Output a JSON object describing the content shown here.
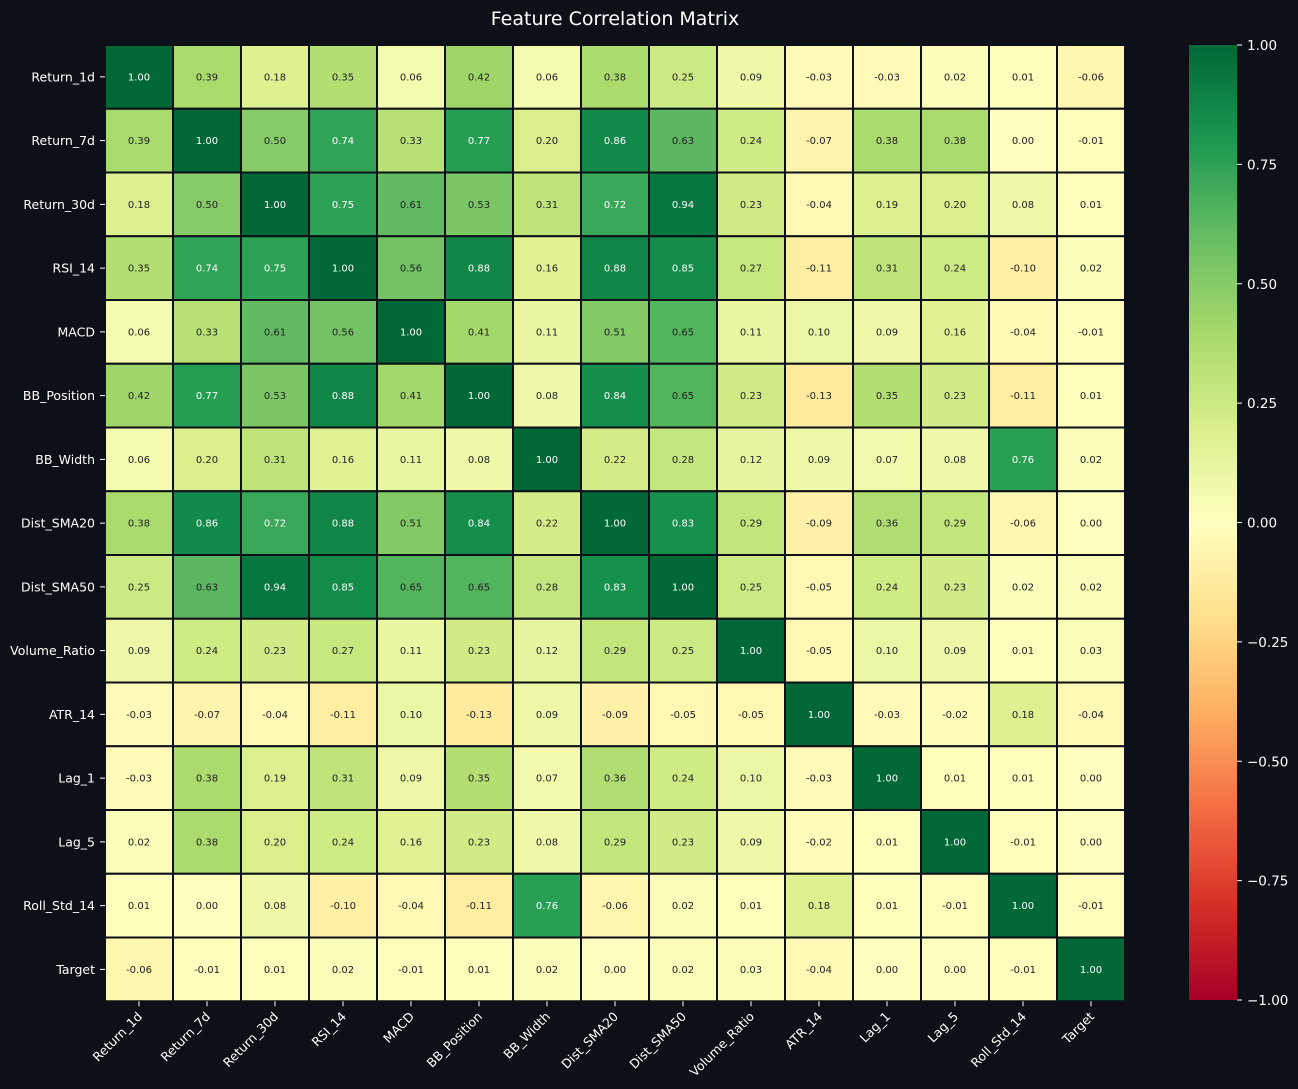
{
  "colors": {
    "background": "#0d1017",
    "text": "#ffffff",
    "cell_border": "#0d1017",
    "colormap": "RdYlGn"
  },
  "chart_data": {
    "type": "heatmap",
    "title": "Feature Correlation Matrix",
    "rows": [
      "Return_1d",
      "Return_7d",
      "Return_30d",
      "RSI_14",
      "MACD",
      "BB_Position",
      "BB_Width",
      "Dist_SMA20",
      "Dist_SMA50",
      "Volume_Ratio",
      "ATR_14",
      "Lag_1",
      "Lag_5",
      "Roll_Std_14",
      "Target"
    ],
    "columns": [
      "Return_1d",
      "Return_7d",
      "Return_30d",
      "RSI_14",
      "MACD",
      "BB_Position",
      "BB_Width",
      "Dist_SMA20",
      "Dist_SMA50",
      "Volume_Ratio",
      "ATR_14",
      "Lag_1",
      "Lag_5",
      "Roll_Std_14",
      "Target"
    ],
    "values": [
      [
        1.0,
        0.39,
        0.18,
        0.35,
        0.06,
        0.42,
        0.06,
        0.38,
        0.25,
        0.09,
        -0.03,
        -0.03,
        0.02,
        0.01,
        -0.06
      ],
      [
        0.39,
        1.0,
        0.5,
        0.74,
        0.33,
        0.77,
        0.2,
        0.86,
        0.63,
        0.24,
        -0.07,
        0.38,
        0.38,
        -0.0,
        -0.01
      ],
      [
        0.18,
        0.5,
        1.0,
        0.75,
        0.61,
        0.53,
        0.31,
        0.72,
        0.94,
        0.23,
        -0.04,
        0.19,
        0.2,
        0.08,
        0.01
      ],
      [
        0.35,
        0.74,
        0.75,
        1.0,
        0.56,
        0.88,
        0.16,
        0.88,
        0.85,
        0.27,
        -0.11,
        0.31,
        0.24,
        -0.1,
        0.02
      ],
      [
        0.06,
        0.33,
        0.61,
        0.56,
        1.0,
        0.41,
        0.11,
        0.51,
        0.65,
        0.11,
        0.1,
        0.09,
        0.16,
        -0.04,
        -0.01
      ],
      [
        0.42,
        0.77,
        0.53,
        0.88,
        0.41,
        1.0,
        0.08,
        0.84,
        0.65,
        0.23,
        -0.13,
        0.35,
        0.23,
        -0.11,
        0.01
      ],
      [
        0.06,
        0.2,
        0.31,
        0.16,
        0.11,
        0.08,
        1.0,
        0.22,
        0.28,
        0.12,
        0.09,
        0.07,
        0.08,
        0.76,
        0.02
      ],
      [
        0.38,
        0.86,
        0.72,
        0.88,
        0.51,
        0.84,
        0.22,
        1.0,
        0.83,
        0.29,
        -0.09,
        0.36,
        0.29,
        -0.06,
        0.0
      ],
      [
        0.25,
        0.63,
        0.94,
        0.85,
        0.65,
        0.65,
        0.28,
        0.83,
        1.0,
        0.25,
        -0.05,
        0.24,
        0.23,
        0.02,
        0.02
      ],
      [
        0.09,
        0.24,
        0.23,
        0.27,
        0.11,
        0.23,
        0.12,
        0.29,
        0.25,
        1.0,
        -0.05,
        0.1,
        0.09,
        0.01,
        0.03
      ],
      [
        -0.03,
        -0.07,
        -0.04,
        -0.11,
        0.1,
        -0.13,
        0.09,
        -0.09,
        -0.05,
        -0.05,
        1.0,
        -0.03,
        -0.02,
        0.18,
        -0.04
      ],
      [
        -0.03,
        0.38,
        0.19,
        0.31,
        0.09,
        0.35,
        0.07,
        0.36,
        0.24,
        0.1,
        -0.03,
        1.0,
        0.01,
        0.01,
        0.0
      ],
      [
        0.02,
        0.38,
        0.2,
        0.24,
        0.16,
        0.23,
        0.08,
        0.29,
        0.23,
        0.09,
        -0.02,
        0.01,
        1.0,
        -0.01,
        0.0
      ],
      [
        0.01,
        -0.0,
        0.08,
        -0.1,
        -0.04,
        -0.11,
        0.76,
        -0.06,
        0.02,
        0.01,
        0.18,
        0.01,
        -0.01,
        1.0,
        -0.01
      ],
      [
        -0.06,
        -0.01,
        0.01,
        0.02,
        -0.01,
        0.01,
        0.02,
        0.0,
        0.02,
        0.03,
        -0.04,
        0.0,
        0.0,
        -0.01,
        1.0
      ]
    ],
    "value_format": "2 decimals",
    "colorbar": {
      "range": [
        -1.0,
        1.0
      ],
      "ticks": [
        1.0,
        0.75,
        0.5,
        0.25,
        0.0,
        -0.25,
        -0.5,
        -0.75,
        -1.0
      ],
      "tick_labels": [
        "1.00",
        "0.75",
        "0.50",
        "0.25",
        "0.00",
        "−0.25",
        "−0.50",
        "−0.75",
        "−1.00"
      ]
    },
    "grid": false,
    "legend": "colorbar-right"
  }
}
